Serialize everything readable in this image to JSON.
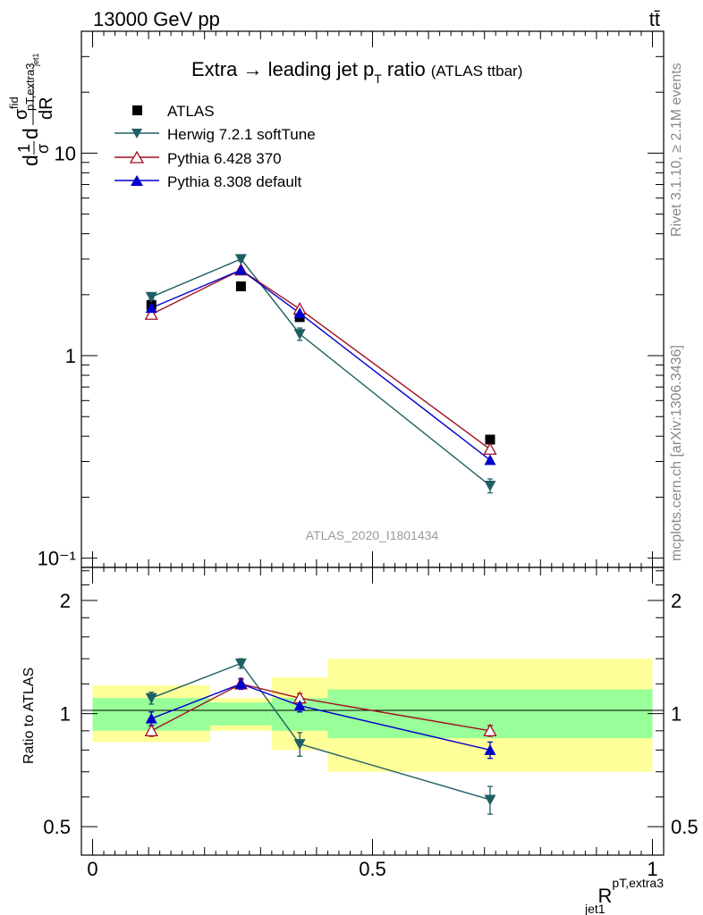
{
  "header": {
    "left": "13000 GeV pp",
    "right": "tt̄"
  },
  "side_text": {
    "rivet": "Rivet 3.1.10, ≥ 2.1M events",
    "mcplots": "mcplots.cern.ch [arXiv:1306.3436]"
  },
  "chart_data": [
    {
      "type": "scatter",
      "title_main": "Extra → leading jet p",
      "title_sub": "T",
      "title_tail": " ratio",
      "title_note": "(ATLAS ttbar)",
      "ylabel": "dσ^fid/dR (1/σ normalized)",
      "ylabel_parts": {
        "d1": "d",
        "frac_num": "1",
        "frac_den": "σ",
        "d2": "d",
        "sigma": "σ",
        "fid": "fid",
        "sub": "pT,extra3",
        "subsub": "jet1",
        "den": "dR"
      },
      "watermark": "ATLAS_2020_I1801434",
      "yscale": "log",
      "ylim": [
        0.09,
        40
      ],
      "xlim": [
        -0.02,
        1.02
      ],
      "yticks": [
        {
          "v": 0.1,
          "label": "10⁻¹"
        },
        {
          "v": 1,
          "label": "1"
        },
        {
          "v": 10,
          "label": "10"
        }
      ],
      "legend_position": "top-left",
      "series": [
        {
          "name": "ATLAS",
          "color": "#000000",
          "marker": "square-filled",
          "x": [
            0.105,
            0.265,
            0.37,
            0.71
          ],
          "y": [
            1.78,
            2.2,
            1.55,
            0.385
          ]
        },
        {
          "name": "Herwig 7.2.1 softTune",
          "color": "#1f5f63",
          "marker": "triangle-down-filled",
          "x": [
            0.105,
            0.265,
            0.37,
            0.71
          ],
          "y": [
            1.95,
            3.0,
            1.28,
            0.228
          ],
          "err": [
            0.05,
            0.07,
            0.09,
            0.018
          ]
        },
        {
          "name": "Pythia 6.428 370",
          "color": "#a01020",
          "marker": "triangle-up-open",
          "x": [
            0.105,
            0.265,
            0.37,
            0.71
          ],
          "y": [
            1.6,
            2.65,
            1.7,
            0.345
          ]
        },
        {
          "name": "Pythia 8.308 default",
          "color": "#0000cc",
          "marker": "triangle-up-filled",
          "x": [
            0.105,
            0.265,
            0.37,
            0.71
          ],
          "y": [
            1.72,
            2.65,
            1.62,
            0.305
          ]
        }
      ]
    },
    {
      "type": "scatter",
      "ylabel": "Ratio to ATLAS",
      "xlabel": "R",
      "xlabel_sup": "pT,extra3",
      "xlabel_sub": "jet1",
      "yscale": "log",
      "ylim": [
        0.42,
        2.45
      ],
      "xlim": [
        -0.02,
        1.02
      ],
      "xticks": [
        {
          "v": 0,
          "label": "0"
        },
        {
          "v": 0.5,
          "label": "0.5"
        },
        {
          "v": 1,
          "label": "1"
        }
      ],
      "yticks": [
        {
          "v": 0.5,
          "label": "0.5"
        },
        {
          "v": 1,
          "label": "1"
        },
        {
          "v": 2,
          "label": "2"
        }
      ],
      "bands": [
        {
          "x0": 0.0,
          "x1": 0.21,
          "inner": [
            0.9,
            1.1
          ],
          "outer": [
            0.84,
            1.19
          ]
        },
        {
          "x0": 0.21,
          "x1": 0.32,
          "inner": [
            0.93,
            1.07
          ],
          "outer": [
            0.9,
            1.1
          ]
        },
        {
          "x0": 0.32,
          "x1": 0.42,
          "inner": [
            0.9,
            1.1
          ],
          "outer": [
            0.8,
            1.25
          ]
        },
        {
          "x0": 0.42,
          "x1": 1.0,
          "inner": [
            0.86,
            1.16
          ],
          "outer": [
            0.7,
            1.4
          ]
        }
      ],
      "series": [
        {
          "name": "Herwig 7.2.1 softTune",
          "color": "#1f5f63",
          "marker": "triangle-down-filled",
          "x": [
            0.105,
            0.265,
            0.37,
            0.71
          ],
          "y": [
            1.1,
            1.36,
            0.83,
            0.59
          ],
          "err": [
            0.04,
            0.04,
            0.06,
            0.05
          ]
        },
        {
          "name": "Pythia 6.428 370",
          "color": "#a01020",
          "marker": "triangle-up-open",
          "x": [
            0.105,
            0.265,
            0.37,
            0.71
          ],
          "y": [
            0.9,
            1.2,
            1.1,
            0.9
          ],
          "err": [
            0.03,
            0.03,
            0.03,
            0.03
          ]
        },
        {
          "name": "Pythia 8.308 default",
          "color": "#0000cc",
          "marker": "triangle-up-filled",
          "x": [
            0.105,
            0.265,
            0.37,
            0.71
          ],
          "y": [
            0.97,
            1.2,
            1.05,
            0.8
          ],
          "err": [
            0.04,
            0.04,
            0.04,
            0.04
          ]
        }
      ]
    }
  ]
}
